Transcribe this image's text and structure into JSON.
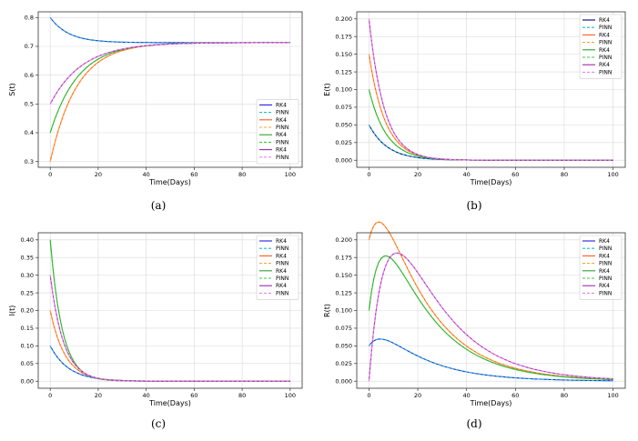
{
  "chart_data": [
    {
      "type": "line",
      "panel": "(a)",
      "xlabel": "Time(Days)",
      "ylabel": "S(t)",
      "xlim": [
        -5,
        105
      ],
      "ylim": [
        0.28,
        0.82
      ],
      "xticks": [
        0,
        20,
        40,
        60,
        80,
        100
      ],
      "xtick_labels": [
        "0",
        "20",
        "40",
        "60",
        "80",
        "100"
      ],
      "yticks": [
        0.3,
        0.4,
        0.5,
        0.6,
        0.7,
        0.8
      ],
      "ytick_labels": [
        "0.3",
        "0.4",
        "0.5",
        "0.6",
        "0.7",
        "0.8"
      ],
      "grid": true,
      "legend_position": "lower-right",
      "series": [
        {
          "name": "RK4",
          "color": "#1f1fdc",
          "dash": false,
          "model": "sigmoid",
          "params": {
            "start": 0.8,
            "end": 0.713,
            "rate": 0.13
          }
        },
        {
          "name": "PINN",
          "color": "#17becf",
          "dash": true,
          "model": "sigmoid",
          "params": {
            "start": 0.8,
            "end": 0.713,
            "rate": 0.13
          }
        },
        {
          "name": "RK4",
          "color": "#ff5722",
          "dash": false,
          "model": "sigmoid",
          "params": {
            "start": 0.3,
            "end": 0.713,
            "rate": 0.09
          }
        },
        {
          "name": "PINN",
          "color": "#ffa726",
          "dash": true,
          "model": "sigmoid",
          "params": {
            "start": 0.3,
            "end": 0.713,
            "rate": 0.09
          }
        },
        {
          "name": "RK4",
          "color": "#2ca02c",
          "dash": false,
          "model": "sigmoid",
          "params": {
            "start": 0.4,
            "end": 0.713,
            "rate": 0.085
          }
        },
        {
          "name": "PINN",
          "color": "#33cc33",
          "dash": true,
          "model": "sigmoid",
          "params": {
            "start": 0.4,
            "end": 0.713,
            "rate": 0.085
          }
        },
        {
          "name": "RK4",
          "color": "#9c27b0",
          "dash": false,
          "model": "sigmoid",
          "params": {
            "start": 0.5,
            "end": 0.713,
            "rate": 0.075
          }
        },
        {
          "name": "PINN",
          "color": "#ee82ee",
          "dash": true,
          "model": "sigmoid",
          "params": {
            "start": 0.5,
            "end": 0.713,
            "rate": 0.075
          }
        }
      ]
    },
    {
      "type": "line",
      "panel": "(b)",
      "xlabel": "Time(Days)",
      "ylabel": "E(t)",
      "xlim": [
        -5,
        105
      ],
      "ylim": [
        -0.01,
        0.21
      ],
      "xticks": [
        0,
        20,
        40,
        60,
        80,
        100
      ],
      "xtick_labels": [
        "0",
        "20",
        "40",
        "60",
        "80",
        "100"
      ],
      "yticks": [
        0,
        0.025,
        0.05,
        0.075,
        0.1,
        0.125,
        0.15,
        0.175,
        0.2
      ],
      "ytick_labels": [
        "0.000",
        "0.025",
        "0.050",
        "0.075",
        "0.100",
        "0.125",
        "0.150",
        "0.175",
        "0.200"
      ],
      "grid": true,
      "legend_position": "top-right",
      "series": [
        {
          "name": "RK4",
          "color": "#000080",
          "dash": false,
          "model": "decay",
          "params": {
            "a": 0.05,
            "rate": 0.13
          }
        },
        {
          "name": "PINN",
          "color": "#17becf",
          "dash": true,
          "model": "decay",
          "params": {
            "a": 0.05,
            "rate": 0.13
          }
        },
        {
          "name": "RK4",
          "color": "#ff5722",
          "dash": false,
          "model": "decay",
          "params": {
            "a": 0.15,
            "rate": 0.15
          }
        },
        {
          "name": "PINN",
          "color": "#ffa726",
          "dash": true,
          "model": "decay",
          "params": {
            "a": 0.15,
            "rate": 0.15
          }
        },
        {
          "name": "RK4",
          "color": "#2ca02c",
          "dash": false,
          "model": "decay",
          "params": {
            "a": 0.1,
            "rate": 0.14
          }
        },
        {
          "name": "PINN",
          "color": "#33cc33",
          "dash": true,
          "model": "decay",
          "params": {
            "a": 0.1,
            "rate": 0.14
          }
        },
        {
          "name": "RK4",
          "color": "#9c27b0",
          "dash": false,
          "model": "decay",
          "params": {
            "a": 0.2,
            "rate": 0.16
          }
        },
        {
          "name": "PINN",
          "color": "#ee82ee",
          "dash": true,
          "model": "decay",
          "params": {
            "a": 0.2,
            "rate": 0.16
          }
        }
      ]
    },
    {
      "type": "line",
      "panel": "(c)",
      "xlabel": "Time(Days)",
      "ylabel": "I(t)",
      "xlim": [
        -5,
        105
      ],
      "ylim": [
        -0.02,
        0.42
      ],
      "xticks": [
        0,
        20,
        40,
        60,
        80,
        100
      ],
      "xtick_labels": [
        "0",
        "20",
        "40",
        "60",
        "80",
        "100"
      ],
      "yticks": [
        0,
        0.05,
        0.1,
        0.15,
        0.2,
        0.25,
        0.3,
        0.35,
        0.4
      ],
      "ytick_labels": [
        "0.00",
        "0.05",
        "0.10",
        "0.15",
        "0.20",
        "0.25",
        "0.30",
        "0.35",
        "0.40"
      ],
      "grid": true,
      "legend_position": "top-right",
      "series": [
        {
          "name": "RK4",
          "color": "#1f1fdc",
          "dash": false,
          "model": "decay",
          "params": {
            "a": 0.1,
            "rate": 0.13
          }
        },
        {
          "name": "PINN",
          "color": "#17becf",
          "dash": true,
          "model": "decay",
          "params": {
            "a": 0.1,
            "rate": 0.13
          }
        },
        {
          "name": "RK4",
          "color": "#ff5722",
          "dash": false,
          "model": "decay",
          "params": {
            "a": 0.2,
            "rate": 0.16
          }
        },
        {
          "name": "PINN",
          "color": "#ffa726",
          "dash": true,
          "model": "decay",
          "params": {
            "a": 0.2,
            "rate": 0.16
          }
        },
        {
          "name": "RK4",
          "color": "#2ca02c",
          "dash": false,
          "model": "decay",
          "params": {
            "a": 0.4,
            "rate": 0.2
          }
        },
        {
          "name": "PINN",
          "color": "#33cc33",
          "dash": true,
          "model": "decay",
          "params": {
            "a": 0.4,
            "rate": 0.2
          }
        },
        {
          "name": "RK4",
          "color": "#9c27b0",
          "dash": false,
          "model": "decay",
          "params": {
            "a": 0.3,
            "rate": 0.18
          }
        },
        {
          "name": "PINN",
          "color": "#ee82ee",
          "dash": true,
          "model": "decay",
          "params": {
            "a": 0.3,
            "rate": 0.18
          }
        }
      ]
    },
    {
      "type": "line",
      "panel": "(d)",
      "xlabel": "Time(Days)",
      "ylabel": "R(t)",
      "xlim": [
        -5,
        105
      ],
      "ylim": [
        -0.01,
        0.21
      ],
      "xticks": [
        0,
        20,
        40,
        60,
        80,
        100
      ],
      "xtick_labels": [
        "0",
        "20",
        "40",
        "60",
        "80",
        "100"
      ],
      "yticks": [
        0,
        0.025,
        0.05,
        0.075,
        0.1,
        0.125,
        0.15,
        0.175,
        0.2
      ],
      "ytick_labels": [
        "0.000",
        "0.025",
        "0.050",
        "0.075",
        "0.100",
        "0.125",
        "0.150",
        "0.175",
        "0.200"
      ],
      "grid": true,
      "legend_position": "top-right",
      "series": [
        {
          "name": "RK4",
          "color": "#1f1fdc",
          "dash": false,
          "model": "hump",
          "params": {
            "r0": 0.05,
            "decay": 0.051,
            "inflow": 0.15,
            "rise": 0.2
          }
        },
        {
          "name": "PINN",
          "color": "#17becf",
          "dash": true,
          "model": "hump",
          "params": {
            "r0": 0.05,
            "decay": 0.051,
            "inflow": 0.15,
            "rise": 0.2
          }
        },
        {
          "name": "RK4",
          "color": "#ff5722",
          "dash": false,
          "model": "hump",
          "params": {
            "r0": 0.2,
            "decay": 0.05,
            "inflow": 0.5,
            "rise": 0.2
          }
        },
        {
          "name": "PINN",
          "color": "#ffa726",
          "dash": true,
          "model": "hump",
          "params": {
            "r0": 0.2,
            "decay": 0.05,
            "inflow": 0.5,
            "rise": 0.2
          }
        },
        {
          "name": "RK4",
          "color": "#2ca02c",
          "dash": false,
          "model": "hump",
          "params": {
            "r0": 0.1,
            "decay": 0.05,
            "inflow": 0.7,
            "rise": 0.2
          }
        },
        {
          "name": "PINN",
          "color": "#33cc33",
          "dash": true,
          "model": "hump",
          "params": {
            "r0": 0.1,
            "decay": 0.05,
            "inflow": 0.7,
            "rise": 0.2
          }
        },
        {
          "name": "RK4",
          "color": "#9c27b0",
          "dash": false,
          "model": "hump",
          "params": {
            "r0": 0.0,
            "decay": 0.05,
            "inflow": 0.9,
            "rise": 0.14
          }
        },
        {
          "name": "PINN",
          "color": "#ee82ee",
          "dash": true,
          "model": "hump",
          "params": {
            "r0": 0.0,
            "decay": 0.05,
            "inflow": 0.9,
            "rise": 0.14
          }
        }
      ]
    }
  ]
}
